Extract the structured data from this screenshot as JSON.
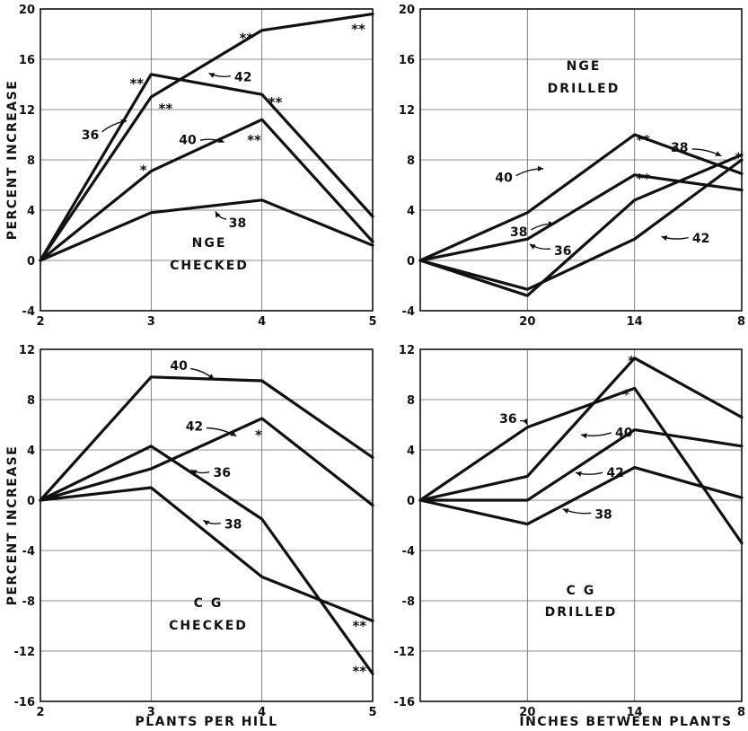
{
  "chart_data": [
    {
      "type": "line",
      "panel": "top-left",
      "title_lines": [
        "NGE",
        "CHECKED"
      ],
      "ylabel": "PERCENT INCREASE",
      "xlabel": "",
      "x": [
        2,
        3,
        4,
        5
      ],
      "x_ticks": [
        "2",
        "3",
        "4",
        "5"
      ],
      "ylim": [
        -4,
        20
      ],
      "y_ticks": [
        -4,
        0,
        4,
        8,
        12,
        16,
        20
      ],
      "grid": true,
      "series": [
        {
          "name": "36",
          "values": [
            0,
            14.8,
            13.2,
            3.5
          ]
        },
        {
          "name": "38",
          "values": [
            0,
            3.8,
            4.8,
            1.2
          ]
        },
        {
          "name": "40",
          "values": [
            0,
            7.1,
            11.2,
            1.5
          ]
        },
        {
          "name": "42",
          "values": [
            0,
            13.0,
            18.3,
            19.6
          ]
        }
      ],
      "series_labels": [
        {
          "text": "36",
          "at": [
            2.45,
            10.0
          ],
          "to": [
            2.78,
            11.1
          ]
        },
        {
          "text": "38",
          "at": [
            3.78,
            3.0
          ],
          "to": [
            3.58,
            3.9
          ]
        },
        {
          "text": "40",
          "at": [
            3.33,
            9.6
          ],
          "to": [
            3.66,
            9.4
          ]
        },
        {
          "text": "42",
          "at": [
            3.83,
            14.6
          ],
          "to": [
            3.52,
            14.9
          ]
        }
      ],
      "significance": [
        {
          "text": "**",
          "at": [
            2.87,
            14.3
          ]
        },
        {
          "text": "**",
          "at": [
            3.13,
            12.3
          ]
        },
        {
          "text": "*",
          "at": [
            2.93,
            7.4
          ]
        },
        {
          "text": "**",
          "at": [
            3.86,
            17.9
          ]
        },
        {
          "text": "**",
          "at": [
            4.12,
            12.8
          ]
        },
        {
          "text": "**",
          "at": [
            3.93,
            9.8
          ]
        },
        {
          "text": "**",
          "at": [
            4.87,
            18.6
          ]
        }
      ]
    },
    {
      "type": "line",
      "panel": "top-right",
      "title_lines": [
        "NGE",
        "DRILLED"
      ],
      "ylabel": "",
      "xlabel": "",
      "x": [
        0,
        1,
        2,
        3
      ],
      "x_ticks": [
        "",
        "20",
        "14",
        "8"
      ],
      "ylim": [
        -4,
        20
      ],
      "y_ticks": [
        -4,
        0,
        4,
        8,
        12,
        16,
        20
      ],
      "grid": true,
      "series": [
        {
          "name": "36",
          "values": [
            0,
            1.7,
            6.8,
            5.6
          ]
        },
        {
          "name": "38",
          "values": [
            0,
            -2.8,
            4.8,
            8.4
          ]
        },
        {
          "name": "40",
          "values": [
            0,
            3.8,
            10.0,
            6.9
          ]
        },
        {
          "name": "42",
          "values": [
            0,
            -2.3,
            1.7,
            8.0
          ]
        }
      ],
      "series_labels": [
        {
          "text": "36",
          "at": [
            1.33,
            0.8
          ],
          "to": [
            1.02,
            1.3
          ]
        },
        {
          "text": "38",
          "at": [
            0.92,
            2.3
          ],
          "to": [
            1.25,
            2.9
          ]
        },
        {
          "text": "38",
          "at": [
            2.42,
            9.0
          ],
          "to": [
            2.81,
            8.3
          ]
        },
        {
          "text": "40",
          "at": [
            0.78,
            6.6
          ],
          "to": [
            1.15,
            7.3
          ]
        },
        {
          "text": "42",
          "at": [
            2.62,
            1.8
          ],
          "to": [
            2.25,
            1.9
          ]
        }
      ],
      "significance": [
        {
          "text": "**",
          "at": [
            2.08,
            9.8
          ]
        },
        {
          "text": "**",
          "at": [
            2.08,
            6.7
          ]
        },
        {
          "text": "*",
          "at": [
            2.97,
            8.4
          ]
        }
      ]
    },
    {
      "type": "line",
      "panel": "bottom-left",
      "title_lines": [
        "C G",
        "CHECKED"
      ],
      "ylabel": "PERCENT INCREASE",
      "xlabel": "PLANTS PER HILL",
      "x": [
        2,
        3,
        4,
        5
      ],
      "x_ticks": [
        "2",
        "3",
        "4",
        "5"
      ],
      "ylim": [
        -16,
        12
      ],
      "y_ticks": [
        -16,
        -12,
        -8,
        -4,
        0,
        4,
        8,
        12
      ],
      "grid": true,
      "series": [
        {
          "name": "36",
          "values": [
            0,
            4.3,
            -1.5,
            -13.8
          ]
        },
        {
          "name": "38",
          "values": [
            0,
            1.0,
            -6.1,
            -9.6
          ]
        },
        {
          "name": "40",
          "values": [
            0,
            9.8,
            9.5,
            3.4
          ]
        },
        {
          "name": "42",
          "values": [
            0,
            2.5,
            6.5,
            -0.4
          ]
        }
      ],
      "series_labels": [
        {
          "text": "36",
          "at": [
            3.64,
            2.2
          ],
          "to": [
            3.36,
            2.4
          ]
        },
        {
          "text": "38",
          "at": [
            3.74,
            -1.9
          ],
          "to": [
            3.47,
            -1.6
          ]
        },
        {
          "text": "40",
          "at": [
            3.25,
            10.7
          ],
          "to": [
            3.57,
            9.6
          ]
        },
        {
          "text": "42",
          "at": [
            3.39,
            5.9
          ],
          "to": [
            3.77,
            5.1
          ]
        }
      ],
      "significance": [
        {
          "text": "*",
          "at": [
            3.97,
            5.4
          ]
        },
        {
          "text": "**",
          "at": [
            4.88,
            -9.8
          ]
        },
        {
          "text": "**",
          "at": [
            4.88,
            -13.4
          ]
        }
      ]
    },
    {
      "type": "line",
      "panel": "bottom-right",
      "title_lines": [
        "C G",
        "DRILLED"
      ],
      "ylabel": "",
      "xlabel": "INCHES BETWEEN PLANTS",
      "x": [
        0,
        1,
        2,
        3
      ],
      "x_ticks": [
        "",
        "20",
        "14",
        "8"
      ],
      "ylim": [
        -16,
        12
      ],
      "y_ticks": [
        -16,
        -12,
        -8,
        -4,
        0,
        4,
        8,
        12
      ],
      "grid": true,
      "series": [
        {
          "name": "36",
          "values": [
            0,
            5.8,
            8.9,
            -3.4
          ]
        },
        {
          "name": "38",
          "values": [
            0,
            -1.9,
            2.6,
            0.2
          ]
        },
        {
          "name": "40",
          "values": [
            0,
            1.9,
            11.3,
            6.6
          ]
        },
        {
          "name": "42",
          "values": [
            0,
            0,
            5.6,
            4.3
          ]
        }
      ],
      "series_labels": [
        {
          "text": "36",
          "at": [
            0.82,
            6.5
          ],
          "to": [
            1.0,
            6.0
          ]
        },
        {
          "text": "38",
          "at": [
            1.71,
            -1.1
          ],
          "to": [
            1.33,
            -0.7
          ]
        },
        {
          "text": "40",
          "at": [
            1.9,
            5.4
          ],
          "to": [
            1.5,
            5.2
          ]
        },
        {
          "text": "42",
          "at": [
            1.82,
            2.2
          ],
          "to": [
            1.45,
            2.2
          ]
        }
      ],
      "significance": [
        {
          "text": "*",
          "at": [
            1.97,
            11.3
          ]
        },
        {
          "text": "*",
          "at": [
            1.92,
            8.6
          ]
        }
      ]
    }
  ]
}
